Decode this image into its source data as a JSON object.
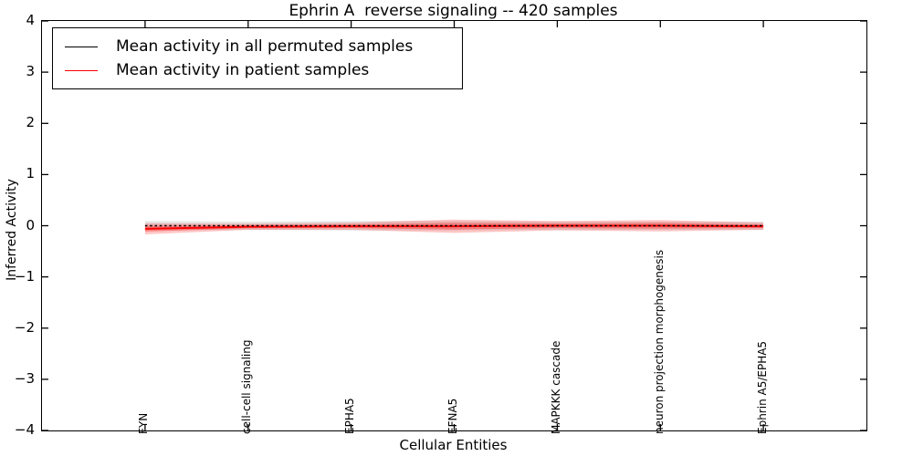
{
  "figure": {
    "background": "#ffffff",
    "frame_color": "#000000"
  },
  "chart_data": {
    "type": "line",
    "title": "Ephrin A  reverse signaling -- 420 samples",
    "xlabel": "Cellular Entities",
    "ylabel": "Inferred Activity",
    "ylim": [
      -4,
      4
    ],
    "yticks": [
      4,
      3,
      2,
      1,
      0,
      -1,
      -2,
      -3,
      -4
    ],
    "categories": [
      "FYN",
      "cell-cell signaling",
      "EPHA5",
      "EFNA5",
      "MAPKKK cascade",
      "neuron projection morphogenesis",
      "Ephrin A5/EPHA5"
    ],
    "series": [
      {
        "name": "Mean activity in all permuted samples",
        "color": "#000000",
        "line_style": "dashed",
        "values": [
          0,
          0,
          0,
          0,
          0,
          0,
          0
        ],
        "band_halfwidth": [
          0.09,
          0.08,
          0.09,
          0.09,
          0.08,
          0.08,
          0.08
        ],
        "band_color": "#888888",
        "band_opacity": 0.22
      },
      {
        "name": "Mean activity in patient samples",
        "color": "#ff0000",
        "line_style": "solid",
        "values": [
          -0.06,
          -0.02,
          -0.01,
          -0.01,
          0,
          0,
          -0.01
        ],
        "band_halfwidth": [
          0.11,
          0.06,
          0.07,
          0.13,
          0.09,
          0.11,
          0.07
        ],
        "band_inner_halfwidth": [
          0.055,
          0.03,
          0.035,
          0.065,
          0.045,
          0.055,
          0.035
        ],
        "band_color": "#ff0000",
        "band_opacity": 0.22,
        "band_inner_opacity": 0.3
      }
    ],
    "legend_position": "upper left",
    "grid": false
  }
}
